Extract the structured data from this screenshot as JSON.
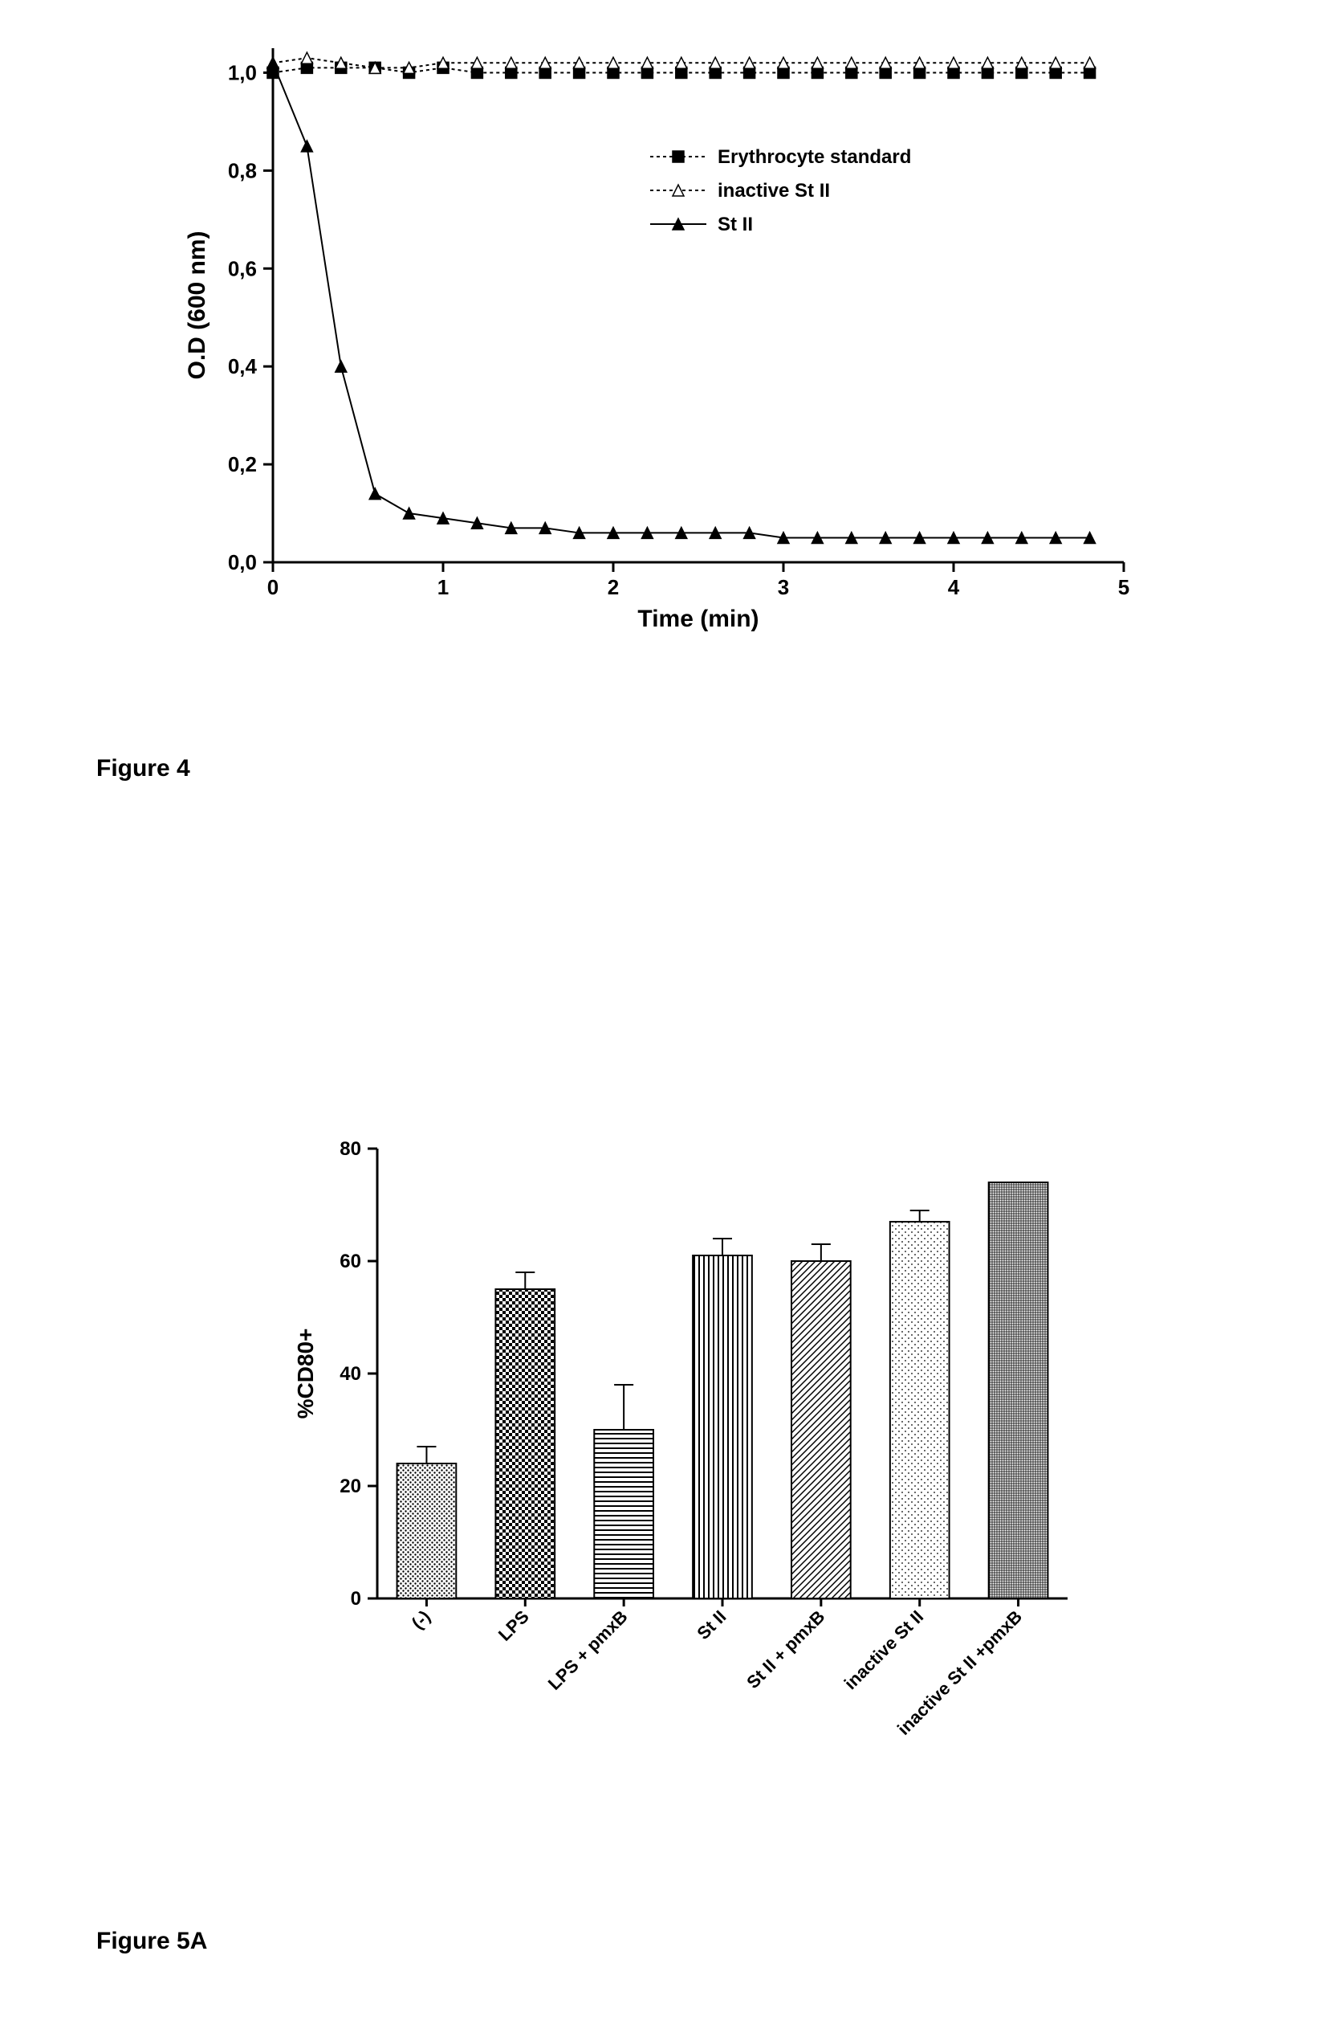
{
  "figure4": {
    "label": "Figure 4",
    "type": "line",
    "xlabel": "Time (min)",
    "ylabel": "O.D (600 nm)",
    "xlim": [
      0,
      5
    ],
    "ylim": [
      0,
      1.05
    ],
    "xticks": [
      0,
      1,
      2,
      3,
      4,
      5
    ],
    "yticks": [
      0.0,
      0.2,
      0.4,
      0.6,
      0.8,
      1.0
    ],
    "ytick_labels": [
      "0,0",
      "0,2",
      "0,4",
      "0,6",
      "0,8",
      "1,0"
    ],
    "background_color": "#ffffff",
    "axis_color": "#000000",
    "tick_fontsize": 26,
    "label_fontsize": 30,
    "legend_fontsize": 24,
    "marker_size": 7,
    "line_width": 2,
    "series": [
      {
        "name": "Erythrocyte standard",
        "marker": "square-filled",
        "color": "#000000",
        "fill": "#000000",
        "dash": "4,4",
        "x": [
          0,
          0.2,
          0.4,
          0.6,
          0.8,
          1.0,
          1.2,
          1.4,
          1.6,
          1.8,
          2.0,
          2.2,
          2.4,
          2.6,
          2.8,
          3.0,
          3.2,
          3.4,
          3.6,
          3.8,
          4.0,
          4.2,
          4.4,
          4.6,
          4.8
        ],
        "y": [
          1.0,
          1.01,
          1.01,
          1.01,
          1.0,
          1.01,
          1.0,
          1.0,
          1.0,
          1.0,
          1.0,
          1.0,
          1.0,
          1.0,
          1.0,
          1.0,
          1.0,
          1.0,
          1.0,
          1.0,
          1.0,
          1.0,
          1.0,
          1.0,
          1.0
        ]
      },
      {
        "name": "inactive St II",
        "marker": "triangle-open",
        "color": "#000000",
        "fill": "#ffffff",
        "dash": "4,4",
        "x": [
          0,
          0.2,
          0.4,
          0.6,
          0.8,
          1.0,
          1.2,
          1.4,
          1.6,
          1.8,
          2.0,
          2.2,
          2.4,
          2.6,
          2.8,
          3.0,
          3.2,
          3.4,
          3.6,
          3.8,
          4.0,
          4.2,
          4.4,
          4.6,
          4.8
        ],
        "y": [
          1.02,
          1.03,
          1.02,
          1.01,
          1.01,
          1.02,
          1.02,
          1.02,
          1.02,
          1.02,
          1.02,
          1.02,
          1.02,
          1.02,
          1.02,
          1.02,
          1.02,
          1.02,
          1.02,
          1.02,
          1.02,
          1.02,
          1.02,
          1.02,
          1.02
        ]
      },
      {
        "name": "St II",
        "marker": "triangle-filled",
        "color": "#000000",
        "fill": "#000000",
        "dash": "none",
        "x": [
          0,
          0.2,
          0.4,
          0.6,
          0.8,
          1.0,
          1.2,
          1.4,
          1.6,
          1.8,
          2.0,
          2.2,
          2.4,
          2.6,
          2.8,
          3.0,
          3.2,
          3.4,
          3.6,
          3.8,
          4.0,
          4.2,
          4.4,
          4.6,
          4.8
        ],
        "y": [
          1.02,
          0.85,
          0.4,
          0.14,
          0.1,
          0.09,
          0.08,
          0.07,
          0.07,
          0.06,
          0.06,
          0.06,
          0.06,
          0.06,
          0.06,
          0.05,
          0.05,
          0.05,
          0.05,
          0.05,
          0.05,
          0.05,
          0.05,
          0.05,
          0.05
        ]
      }
    ]
  },
  "figure5A": {
    "label": "Figure 5A",
    "type": "bar",
    "ylabel": "%CD80+",
    "ylim": [
      0,
      80
    ],
    "yticks": [
      0,
      20,
      40,
      60,
      80
    ],
    "categories": [
      "(-)",
      "LPS",
      "LPS + pmxB",
      "St II",
      "St II + pmxB",
      "inactive St II",
      "inactive St II +pmxB"
    ],
    "values": [
      24,
      55,
      30,
      61,
      60,
      67,
      74
    ],
    "errors": [
      3,
      3,
      8,
      3,
      3,
      2,
      0
    ],
    "bar_width": 0.6,
    "axis_color": "#000000",
    "tick_fontsize": 24,
    "label_fontsize": 28,
    "cat_fontsize": 22,
    "background_color": "#ffffff",
    "bar_patterns": [
      "dots-dark",
      "checker",
      "hstripes",
      "vstripes",
      "diag",
      "dots-light",
      "crosshatch"
    ]
  }
}
